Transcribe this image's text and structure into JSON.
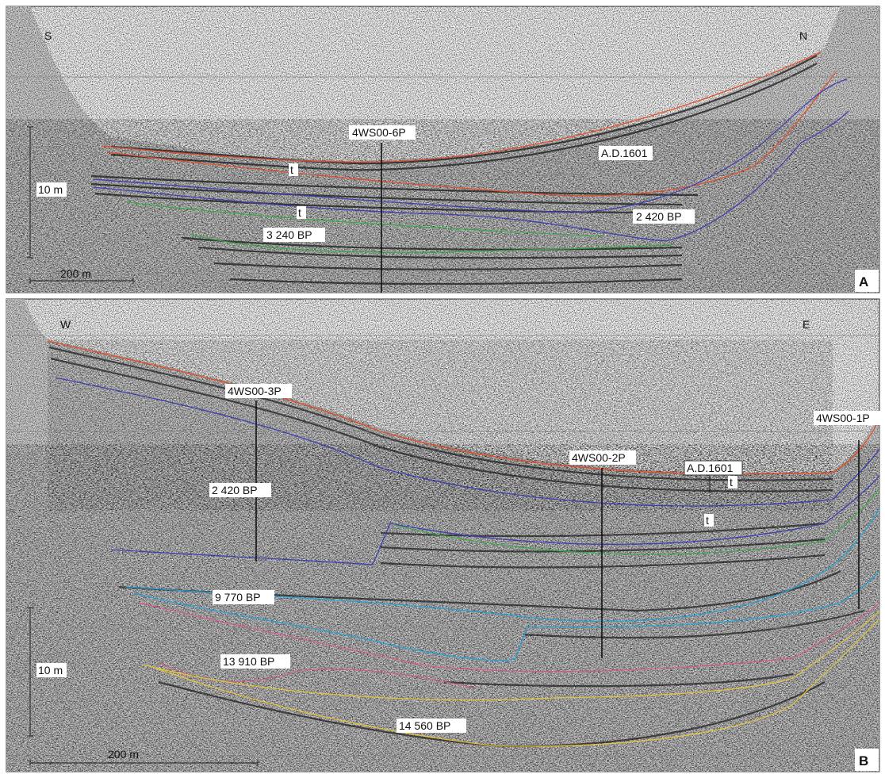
{
  "panels": [
    {
      "id": "A",
      "letter": "A",
      "dir_left": "S",
      "dir_right": "N",
      "vertical_scale": "10 m",
      "horizontal_scale": "200 m",
      "cores": [
        "4WS00-6P"
      ],
      "labels": {
        "ad": "A.D.1601",
        "age_2420": "2 420 BP",
        "age_3240": "3 240 BP",
        "t1": "t",
        "t2": "t"
      },
      "horizon_colors": {
        "red": "#e0502a",
        "blue": "#3f3fb0",
        "green": "#3aa84a"
      }
    },
    {
      "id": "B",
      "letter": "B",
      "dir_left": "W",
      "dir_right": "E",
      "vertical_scale": "10 m",
      "horizontal_scale": "200 m",
      "cores": [
        "4WS00-3P",
        "4WS00-2P",
        "4WS00-1P"
      ],
      "labels": {
        "ad": "A.D.1601",
        "age_2420": "2 420 BP",
        "age_9770": "9 770 BP",
        "age_13910": "13 910 BP",
        "age_14560": "14 560 BP",
        "t1": "t",
        "t2": "t"
      },
      "horizon_colors": {
        "red": "#e0502a",
        "blue": "#3f3fb0",
        "green": "#3aa84a",
        "cyan": "#2a9fd6",
        "pink": "#d65a86",
        "yellow": "#e2c33a"
      }
    }
  ]
}
